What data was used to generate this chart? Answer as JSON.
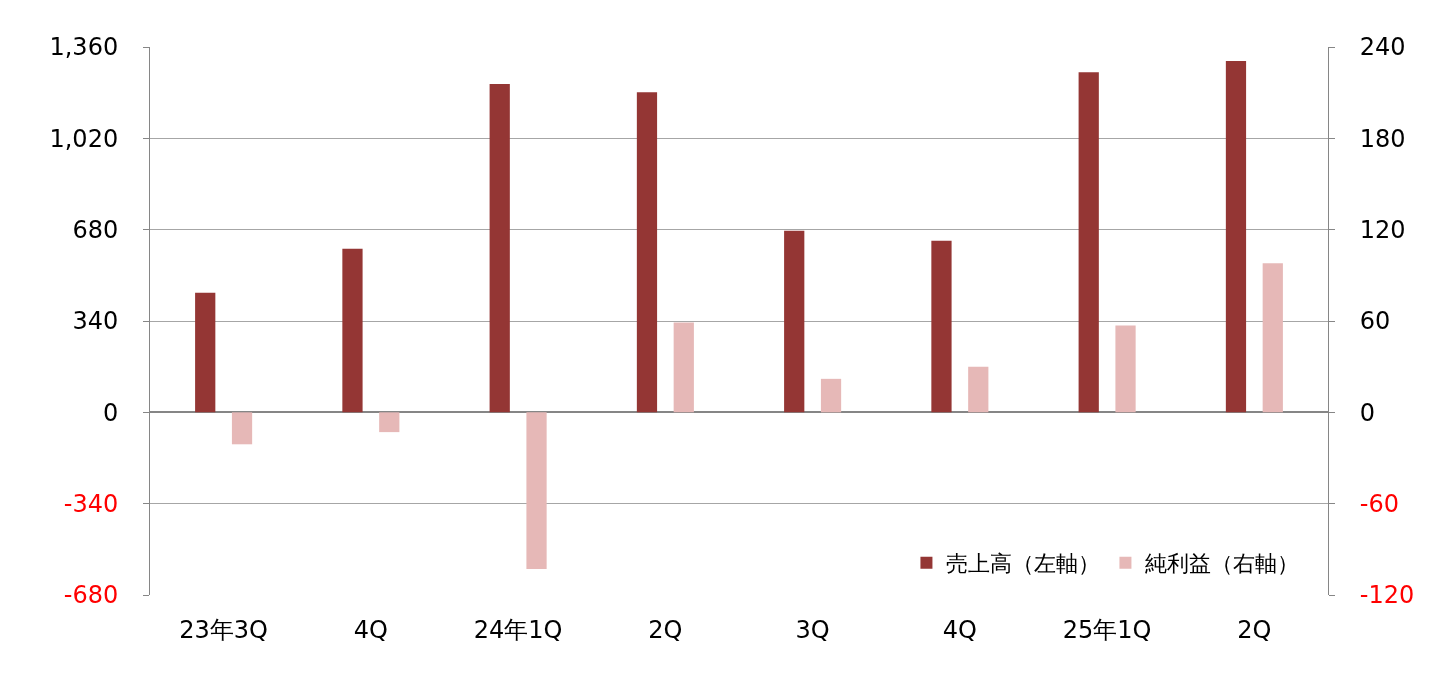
{
  "chart_data": {
    "type": "bar",
    "categories": [
      "23年3Q",
      "4Q",
      "24年1Q",
      "2Q",
      "3Q",
      "4Q",
      "25年1Q",
      "2Q"
    ],
    "series": [
      {
        "name": "売上高（左軸）",
        "color": "#943634",
        "values": [
          445,
          609,
          1222,
          1192,
          676,
          639,
          1266,
          1308
        ]
      },
      {
        "name": "純利益（右軸）",
        "color": "#e6b8b7",
        "axis": "y2",
        "values": [
          -21,
          -13,
          -103,
          59,
          22,
          30,
          57,
          98
        ]
      }
    ],
    "ylim": [
      -680,
      1360
    ],
    "yticks": [
      -680,
      -340,
      0,
      340,
      680,
      {
        "value": 1020,
        "label": "1,020"
      },
      {
        "value": 1360,
        "label": "1,360"
      }
    ],
    "y2lim": [
      -120,
      240
    ],
    "y2ticks": [
      -120,
      -60,
      0,
      60,
      120,
      180,
      240
    ],
    "grid": "y",
    "legend": "bottom right"
  }
}
